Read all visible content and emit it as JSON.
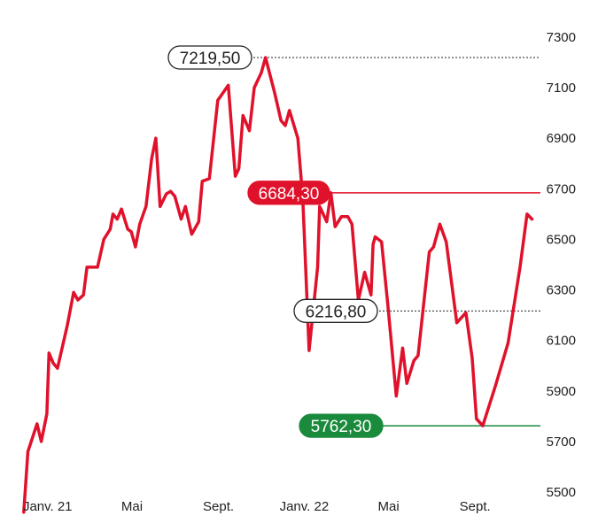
{
  "chart_data": {
    "type": "line",
    "title": "",
    "xlabel": "",
    "ylabel": "",
    "ylim": [
      5500,
      7300
    ],
    "xlim": [
      "2020-11-22",
      "2022-12-03"
    ],
    "y_ticks": [
      {
        "value": 5500,
        "label": "5500"
      },
      {
        "value": 5700,
        "label": "5700"
      },
      {
        "value": 5900,
        "label": "5900"
      },
      {
        "value": 6100,
        "label": "6100"
      },
      {
        "value": 6300,
        "label": "6300"
      },
      {
        "value": 6500,
        "label": "6500"
      },
      {
        "value": 6700,
        "label": "6700"
      },
      {
        "value": 6900,
        "label": "6900"
      },
      {
        "value": 7100,
        "label": "7100"
      },
      {
        "value": 7300,
        "label": "7300"
      }
    ],
    "x_ticks": [
      {
        "date": "2021-01-01",
        "label": "Janv. 21"
      },
      {
        "date": "2021-05-01",
        "label": "Mai"
      },
      {
        "date": "2021-09-01",
        "label": "Sept."
      },
      {
        "date": "2022-01-01",
        "label": "Janv. 22"
      },
      {
        "date": "2022-05-01",
        "label": "Mai"
      },
      {
        "date": "2022-09-01",
        "label": "Sept."
      }
    ],
    "grid": false,
    "colors": {
      "line": "#e0112b",
      "high": "#e0112b",
      "low": "#1a8a3c",
      "neutral": "#222222"
    },
    "series": [
      {
        "name": "",
        "points": [
          [
            "2020-11-28",
            5420
          ],
          [
            "2020-12-04",
            5660
          ],
          [
            "2020-12-17",
            5770
          ],
          [
            "2020-12-23",
            5700
          ],
          [
            "2020-12-31",
            5810
          ],
          [
            "2021-01-03",
            6050
          ],
          [
            "2021-01-09",
            6010
          ],
          [
            "2021-01-15",
            5990
          ],
          [
            "2021-01-29",
            6160
          ],
          [
            "2021-02-07",
            6290
          ],
          [
            "2021-02-13",
            6260
          ],
          [
            "2021-02-21",
            6280
          ],
          [
            "2021-02-26",
            6390
          ],
          [
            "2021-03-13",
            6390
          ],
          [
            "2021-03-22",
            6500
          ],
          [
            "2021-03-31",
            6540
          ],
          [
            "2021-04-04",
            6600
          ],
          [
            "2021-04-10",
            6580
          ],
          [
            "2021-04-16",
            6620
          ],
          [
            "2021-04-25",
            6540
          ],
          [
            "2021-04-30",
            6530
          ],
          [
            "2021-05-06",
            6470
          ],
          [
            "2021-05-12",
            6560
          ],
          [
            "2021-05-21",
            6630
          ],
          [
            "2021-05-29",
            6820
          ],
          [
            "2021-06-04",
            6900
          ],
          [
            "2021-06-10",
            6630
          ],
          [
            "2021-06-19",
            6680
          ],
          [
            "2021-06-25",
            6690
          ],
          [
            "2021-07-01",
            6670
          ],
          [
            "2021-07-10",
            6580
          ],
          [
            "2021-07-16",
            6630
          ],
          [
            "2021-07-25",
            6520
          ],
          [
            "2021-08-04",
            6570
          ],
          [
            "2021-08-09",
            6730
          ],
          [
            "2021-08-19",
            6740
          ],
          [
            "2021-08-31",
            7050
          ],
          [
            "2021-09-15",
            7110
          ],
          [
            "2021-09-25",
            6750
          ],
          [
            "2021-09-30",
            6780
          ],
          [
            "2021-10-06",
            6990
          ],
          [
            "2021-10-15",
            6930
          ],
          [
            "2021-10-22",
            7100
          ],
          [
            "2021-11-01",
            7160
          ],
          [
            "2021-11-07",
            7219.5
          ],
          [
            "2021-11-20",
            7080
          ],
          [
            "2021-11-29",
            6970
          ],
          [
            "2021-12-05",
            6950
          ],
          [
            "2021-12-11",
            7010
          ],
          [
            "2021-12-23",
            6900
          ],
          [
            "2021-12-30",
            6660
          ],
          [
            "2022-01-08",
            6060
          ],
          [
            "2022-01-20",
            6390
          ],
          [
            "2022-01-23",
            6630
          ],
          [
            "2022-02-02",
            6570
          ],
          [
            "2022-02-08",
            6684.3
          ],
          [
            "2022-02-14",
            6550
          ],
          [
            "2022-02-23",
            6590
          ],
          [
            "2022-03-04",
            6590
          ],
          [
            "2022-03-10",
            6560
          ],
          [
            "2022-03-19",
            6260
          ],
          [
            "2022-03-28",
            6370
          ],
          [
            "2022-04-06",
            6280
          ],
          [
            "2022-04-09",
            6480
          ],
          [
            "2022-04-12",
            6510
          ],
          [
            "2022-04-21",
            6490
          ],
          [
            "2022-04-30",
            6240
          ],
          [
            "2022-05-12",
            5880
          ],
          [
            "2022-05-21",
            6070
          ],
          [
            "2022-05-27",
            5930
          ],
          [
            "2022-06-06",
            6020
          ],
          [
            "2022-06-12",
            6040
          ],
          [
            "2022-06-28",
            6450
          ],
          [
            "2022-07-04",
            6470
          ],
          [
            "2022-07-13",
            6560
          ],
          [
            "2022-07-22",
            6490
          ],
          [
            "2022-08-06",
            6170
          ],
          [
            "2022-08-19",
            6210
          ],
          [
            "2022-08-28",
            6030
          ],
          [
            "2022-09-03",
            5790
          ],
          [
            "2022-09-12",
            5762.3
          ],
          [
            "2022-09-30",
            5920
          ],
          [
            "2022-10-18",
            6090
          ],
          [
            "2022-11-04",
            6390
          ],
          [
            "2022-11-14",
            6600
          ],
          [
            "2022-11-21",
            6580
          ]
        ]
      }
    ],
    "reference_lines": [
      {
        "id": "high",
        "value": 7219.5,
        "label": "7219,50",
        "style": "dotted",
        "color": "#222222",
        "pill": "outline"
      },
      {
        "id": "peak2",
        "value": 6684.3,
        "label": "6684,30",
        "style": "solid",
        "color": "#e0112b",
        "pill": "filled"
      },
      {
        "id": "last",
        "value": 6216.8,
        "label": "6216,80",
        "style": "dotted",
        "color": "#222222",
        "pill": "outline"
      },
      {
        "id": "low",
        "value": 5762.3,
        "label": "5762,30",
        "style": "solid",
        "color": "#1a8a3c",
        "pill": "filled"
      }
    ]
  }
}
